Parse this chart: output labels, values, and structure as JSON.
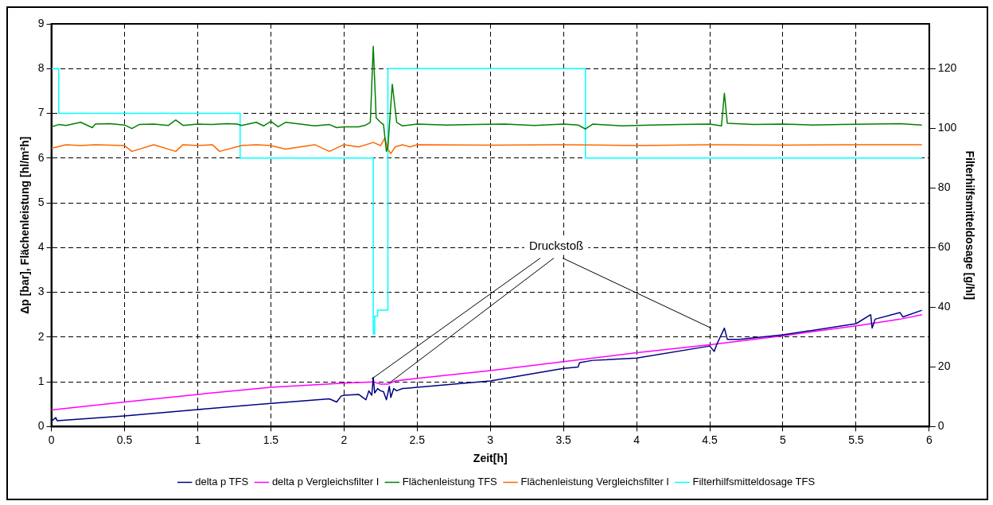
{
  "chart_data": {
    "type": "line",
    "xlabel": "Zeit[h]",
    "ylabel": "Δp [bar], Flächenleistung [hl/m²h]",
    "y2label": "Filterhilfsmitteldosage [g/hl]",
    "xlim": [
      0,
      6
    ],
    "xticks": [
      0,
      0.5,
      1,
      1.5,
      2,
      2.5,
      3,
      3.5,
      4,
      4.5,
      5,
      5.5,
      6
    ],
    "ylim": [
      0,
      9
    ],
    "yticks": [
      0,
      1,
      2,
      3,
      4,
      5,
      6,
      7,
      8,
      9
    ],
    "y2lim": [
      0,
      135
    ],
    "y2ticks": [
      0,
      20,
      40,
      60,
      80,
      100,
      120
    ],
    "grid": true,
    "legend": "bottom",
    "marker": "none",
    "line_style": "solid",
    "annotations": [
      {
        "text": "Druckstoß",
        "x": 2.2,
        "y": 1.1
      }
    ],
    "series": [
      {
        "name": "delta p TFS",
        "color": "#000080",
        "x": [
          0,
          0.03,
          0.04,
          0.5,
          1.0,
          1.5,
          1.9,
          1.95,
          1.98,
          2.0,
          2.1,
          2.15,
          2.17,
          2.19,
          2.2,
          2.21,
          2.23,
          2.25,
          2.27,
          2.29,
          2.31,
          2.32,
          2.34,
          2.36,
          2.4,
          2.5,
          3.0,
          3.5,
          3.6,
          3.61,
          3.7,
          4.0,
          4.5,
          4.53,
          4.55,
          4.6,
          4.62,
          4.7,
          5.0,
          5.5,
          5.6,
          5.61,
          5.63,
          5.8,
          5.82,
          5.95
        ],
        "values": [
          0.12,
          0.2,
          0.13,
          0.24,
          0.38,
          0.52,
          0.62,
          0.55,
          0.68,
          0.7,
          0.72,
          0.6,
          0.8,
          0.7,
          1.1,
          0.75,
          0.85,
          0.8,
          0.78,
          0.6,
          0.9,
          0.65,
          0.85,
          0.8,
          0.85,
          0.88,
          1.02,
          1.3,
          1.33,
          1.43,
          1.48,
          1.53,
          1.8,
          1.68,
          1.85,
          2.2,
          1.95,
          1.95,
          2.05,
          2.3,
          2.5,
          2.2,
          2.4,
          2.55,
          2.45,
          2.6
        ]
      },
      {
        "name": "delta p Vergleichsfilter I",
        "color": "#ff00ff",
        "x": [
          0,
          0.5,
          1,
          1.5,
          2,
          2.2,
          2.25,
          2.3,
          2.35,
          2.5,
          3,
          3.5,
          4,
          4.5,
          5,
          5.5,
          5.6,
          5.8,
          5.95
        ],
        "values": [
          0.37,
          0.55,
          0.72,
          0.88,
          0.97,
          1.0,
          0.95,
          0.95,
          1.02,
          1.08,
          1.25,
          1.45,
          1.65,
          1.83,
          2.03,
          2.25,
          2.3,
          2.4,
          2.5
        ]
      },
      {
        "name": "Flächenleistung TFS",
        "color": "#008000",
        "x": [
          0,
          0.05,
          0.1,
          0.2,
          0.28,
          0.3,
          0.4,
          0.5,
          0.55,
          0.6,
          0.7,
          0.8,
          0.85,
          0.9,
          1.0,
          1.1,
          1.2,
          1.27,
          1.3,
          1.4,
          1.45,
          1.5,
          1.55,
          1.6,
          1.7,
          1.8,
          1.9,
          1.95,
          2.0,
          2.1,
          2.15,
          2.18,
          2.2,
          2.22,
          2.25,
          2.27,
          2.29,
          2.3,
          2.33,
          2.36,
          2.4,
          2.5,
          2.7,
          2.9,
          3.1,
          3.3,
          3.5,
          3.6,
          3.65,
          3.7,
          3.9,
          4.1,
          4.3,
          4.5,
          4.58,
          4.6,
          4.62,
          4.8,
          5.0,
          5.2,
          5.4,
          5.6,
          5.8,
          5.95
        ],
        "values": [
          6.7,
          6.75,
          6.73,
          6.8,
          6.68,
          6.76,
          6.77,
          6.74,
          6.66,
          6.75,
          6.76,
          6.73,
          6.85,
          6.73,
          6.76,
          6.75,
          6.77,
          6.76,
          6.73,
          6.8,
          6.72,
          6.82,
          6.7,
          6.8,
          6.76,
          6.72,
          6.75,
          6.68,
          6.7,
          6.7,
          6.74,
          6.8,
          8.5,
          6.9,
          6.8,
          6.75,
          6.15,
          6.25,
          7.65,
          6.8,
          6.72,
          6.76,
          6.74,
          6.75,
          6.76,
          6.73,
          6.76,
          6.74,
          6.65,
          6.76,
          6.72,
          6.74,
          6.75,
          6.76,
          6.72,
          7.45,
          6.78,
          6.75,
          6.76,
          6.74,
          6.75,
          6.76,
          6.77,
          6.74
        ]
      },
      {
        "name": "Flächenleistung Vergleichsfilter I",
        "color": "#ff6600",
        "x": [
          0,
          0.1,
          0.2,
          0.3,
          0.5,
          0.55,
          0.7,
          0.85,
          0.9,
          1.0,
          1.1,
          1.15,
          1.3,
          1.4,
          1.5,
          1.6,
          1.8,
          1.9,
          2.0,
          2.1,
          2.2,
          2.25,
          2.28,
          2.3,
          2.32,
          2.35,
          2.4,
          2.45,
          2.5,
          3.0,
          3.5,
          4.0,
          4.5,
          5.0,
          5.5,
          5.95
        ],
        "values": [
          6.22,
          6.3,
          6.28,
          6.3,
          6.28,
          6.15,
          6.3,
          6.15,
          6.3,
          6.28,
          6.3,
          6.15,
          6.28,
          6.3,
          6.28,
          6.2,
          6.3,
          6.15,
          6.3,
          6.25,
          6.35,
          6.28,
          6.45,
          6.2,
          6.1,
          6.25,
          6.3,
          6.25,
          6.3,
          6.29,
          6.3,
          6.28,
          6.3,
          6.29,
          6.3,
          6.3
        ]
      },
      {
        "name": "Filterhilfsmitteldosage TFS",
        "color": "#00ffff",
        "type": "step",
        "axis": "y2",
        "x": [
          0,
          0.05,
          1.29,
          2.2,
          2.21,
          2.23,
          2.3,
          3.65,
          5.95
        ],
        "values": [
          120,
          105,
          90,
          31,
          37,
          39,
          120,
          90,
          90
        ]
      }
    ]
  }
}
